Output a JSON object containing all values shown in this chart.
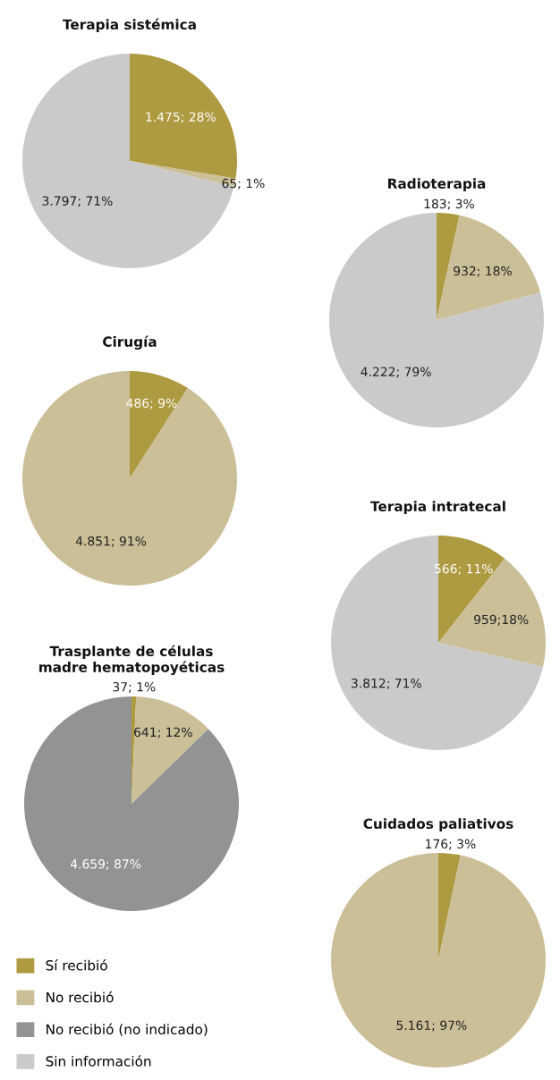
{
  "chart_data": [
    {
      "type": "pie",
      "title": "Terapia sistémica",
      "categories": [
        "Sí recibió",
        "No recibió",
        "Sin información"
      ],
      "values": [
        1475,
        65,
        3797
      ],
      "colors": [
        "#ae9a40",
        "#cbbf97",
        "#cacaca"
      ],
      "value_labels": [
        "1.475; 28%",
        "65; 1%",
        "3.797; 71%"
      ],
      "legend": "bottom left"
    },
    {
      "type": "pie",
      "title": "Radioterapia",
      "categories": [
        null,
        null,
        null
      ],
      "values": [
        183,
        932,
        4222
      ],
      "colors": [
        "#ae9a40",
        "#cbbf97",
        "#cacaca"
      ],
      "value_labels": [
        "183; 3%",
        "932; 18%",
        "4.222; 79%"
      ]
    },
    {
      "type": "pie",
      "title": "Cirugía",
      "categories": [
        null,
        null
      ],
      "values": [
        486,
        4851
      ],
      "colors": [
        "#ae9a40",
        "#cbbf97"
      ],
      "value_labels": [
        "486; 9%",
        "4.851; 91%"
      ]
    },
    {
      "type": "pie",
      "title": "Terapia intratecal",
      "categories": [
        null,
        null,
        null
      ],
      "values": [
        566,
        959,
        3812
      ],
      "colors": [
        "#ae9a40",
        "#cbbf97",
        "#cacaca"
      ],
      "value_labels": [
        "566; 11%",
        "959;18%",
        "3.812; 71%"
      ]
    },
    {
      "type": "pie",
      "title": "Trasplante de células\nmadre hematopoyéticas",
      "categories": [
        null,
        null,
        "No recibió (no indicado)"
      ],
      "values": [
        37,
        641,
        4659
      ],
      "colors": [
        "#ae9a40",
        "#cbbf97",
        "#939393"
      ],
      "value_labels": [
        "37; 1%",
        "641; 12%",
        "4.659; 87%"
      ]
    },
    {
      "type": "pie",
      "title": "Cuidados paliativos",
      "categories": [
        null,
        null
      ],
      "values": [
        176,
        5161
      ],
      "colors": [
        "#ae9a40",
        "#cbbf97"
      ],
      "value_labels": [
        "176; 3%",
        "5.161; 97%"
      ]
    }
  ]
}
